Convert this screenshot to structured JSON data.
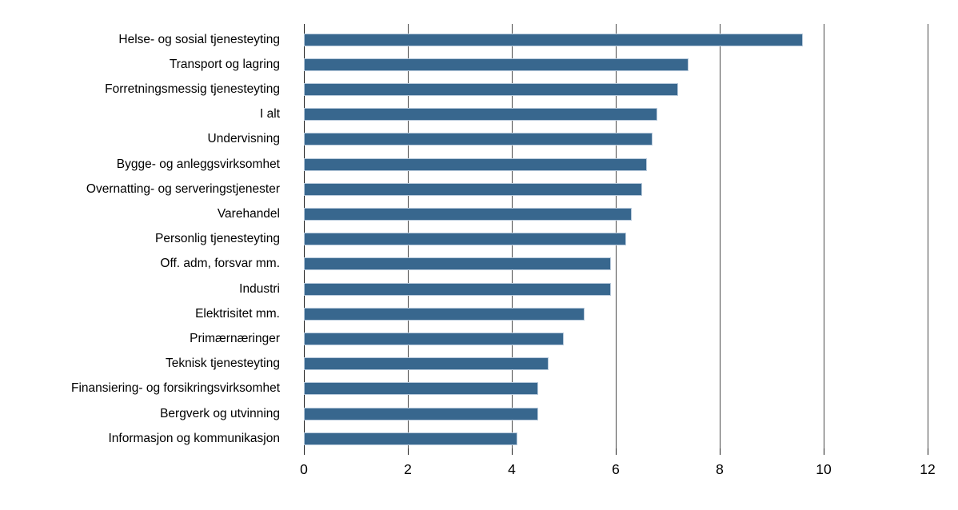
{
  "chart_data": {
    "type": "bar",
    "orientation": "horizontal",
    "title": "",
    "xlabel": "",
    "ylabel": "",
    "xlim": [
      0,
      12
    ],
    "x_ticks": [
      "0",
      "2",
      "4",
      "6",
      "8",
      "10",
      "12"
    ],
    "x_tick_values": [
      0,
      2,
      4,
      6,
      8,
      10,
      12
    ],
    "grid": "vertical-gridlines-on",
    "legend": "none",
    "categories": [
      "Helse- og sosial tjenesteyting",
      "Transport og lagring",
      "Forretningsmessig tjenesteyting",
      "I alt",
      "Undervisning",
      "Bygge- og anleggsvirksomhet",
      "Overnatting- og serveringstjenester",
      "Varehandel",
      "Personlig tjenesteyting",
      "Off. adm, forsvar mm.",
      "Industri",
      "Elektrisitet mm.",
      "Primærnæringer",
      "Teknisk tjenesteyting",
      "Finansiering- og forsikringsvirksomhet",
      "Bergverk og utvinning",
      "Informasjon og kommunikasjon"
    ],
    "values": [
      9.6,
      7.4,
      7.2,
      6.8,
      6.7,
      6.6,
      6.5,
      6.3,
      6.2,
      5.9,
      5.9,
      5.4,
      5.0,
      4.7,
      4.5,
      4.5,
      4.1
    ],
    "colors": {
      "bar_fill": "#38678E",
      "bar_border": "#B7C9DB",
      "gridline": "#4A4A4A",
      "axis_line": "#1E1E1E",
      "text": "#000000",
      "background": "#FFFFFF"
    }
  }
}
